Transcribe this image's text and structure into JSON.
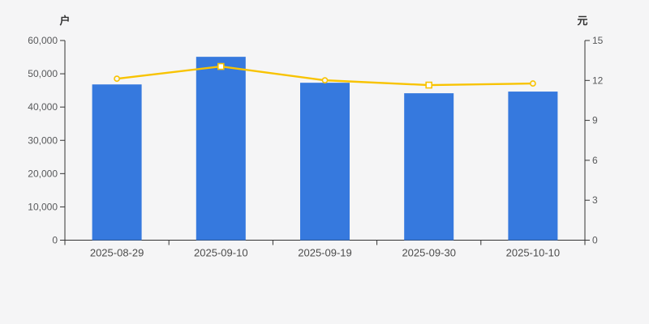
{
  "panel": {
    "background_color": "#f5f5f6"
  },
  "chart_data": {
    "type": "bar+line dual-axis",
    "title": "",
    "categories": [
      "2025-08-29",
      "2025-09-10",
      "2025-09-19",
      "2025-09-30",
      "2025-10-10"
    ],
    "series": [
      {
        "name": "holders-bar-series",
        "type": "bar",
        "axis": "left",
        "color": "#3679de",
        "values": [
          46800,
          55100,
          47300,
          44150,
          44650
        ]
      },
      {
        "name": "price-line-series",
        "type": "line",
        "axis": "right",
        "color": "#f8c301",
        "values": [
          12.13,
          13.05,
          12.01,
          11.65,
          11.77
        ],
        "marker_symbols": [
          "circle",
          "square",
          "circle",
          "square",
          "circle"
        ],
        "marker_fill_circle": "#f5f5f6",
        "marker_fill_square": "#ffffff"
      }
    ],
    "left_axis": {
      "name": "户",
      "min": 0,
      "max": 60000,
      "interval": 10000,
      "tick_labels": [
        "0",
        "10,000",
        "20,000",
        "30,000",
        "40,000",
        "50,000",
        "60,000"
      ]
    },
    "right_axis": {
      "name": "元",
      "min": 0,
      "max": 15,
      "interval": 3,
      "tick_labels": [
        "0",
        "3",
        "6",
        "9",
        "12",
        "15"
      ]
    },
    "grid": false,
    "legend": false,
    "axis_line_color": "#333333",
    "tick_label_color": "#57585a",
    "category_label_color": "#4c4c4c"
  }
}
